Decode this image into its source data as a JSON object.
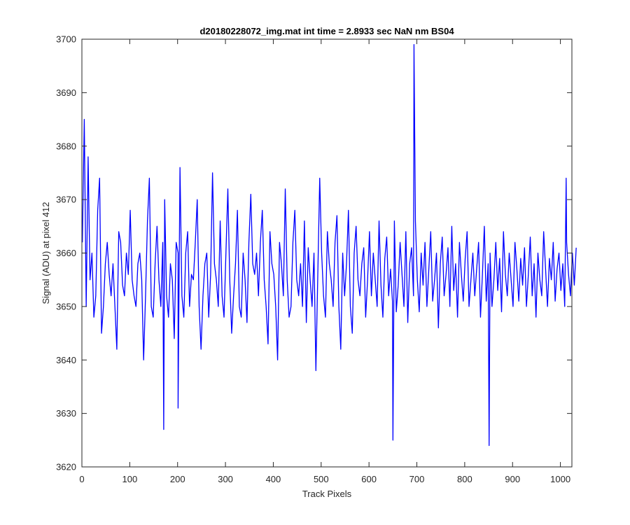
{
  "chart_data": {
    "type": "line",
    "title": "d20180228072_img.mat int time = 2.8933 sec  NaN nm BS04",
    "xlabel": "Track Pixels",
    "ylabel": "Signal (ADU) at pixel 412",
    "xlim": [
      0,
      1024
    ],
    "ylim": [
      3620,
      3700
    ],
    "xticks": [
      0,
      100,
      200,
      300,
      400,
      500,
      600,
      700,
      800,
      900,
      1000
    ],
    "yticks": [
      3620,
      3630,
      3640,
      3650,
      3660,
      3670,
      3680,
      3690,
      3700
    ],
    "grid": false,
    "line_color": "#0000ff",
    "series": [
      {
        "x_start": 1,
        "x_step": 4,
        "values": [
          3662,
          3685,
          3650,
          3678,
          3655,
          3660,
          3648,
          3652,
          3668,
          3674,
          3645,
          3650,
          3658,
          3662,
          3656,
          3652,
          3658,
          3650,
          3642,
          3664,
          3662,
          3654,
          3652,
          3660,
          3656,
          3668,
          3655,
          3652,
          3650,
          3658,
          3660,
          3655,
          3640,
          3652,
          3666,
          3674,
          3650,
          3648,
          3658,
          3665,
          3655,
          3650,
          3662,
          3670,
          3652,
          3648,
          3658,
          3655,
          3644,
          3662,
          3660,
          3676,
          3652,
          3648,
          3660,
          3664,
          3650,
          3656,
          3655,
          3662,
          3670,
          3650,
          3642,
          3652,
          3658,
          3660,
          3648,
          3656,
          3675,
          3658,
          3655,
          3650,
          3666,
          3652,
          3648,
          3660,
          3672,
          3655,
          3645,
          3652,
          3658,
          3668,
          3650,
          3648,
          3660,
          3655,
          3647,
          3662,
          3671,
          3658,
          3656,
          3660,
          3652,
          3662,
          3668,
          3655,
          3650,
          3643,
          3664,
          3658,
          3656,
          3650,
          3640,
          3662,
          3658,
          3652,
          3672,
          3655,
          3648,
          3650,
          3662,
          3668,
          3655,
          3652,
          3658,
          3650,
          3666,
          3647,
          3661,
          3655,
          3650,
          3660,
          3638,
          3656,
          3674,
          3660,
          3652,
          3648,
          3664,
          3658,
          3655,
          3650,
          3662,
          3667,
          3650,
          3642,
          3660,
          3652,
          3658,
          3668,
          3650,
          3645,
          3660,
          3665,
          3655,
          3652,
          3658,
          3661,
          3648,
          3655,
          3664,
          3652,
          3660,
          3655,
          3650,
          3666,
          3654,
          3648,
          3659,
          3663,
          3652,
          3657,
          3651,
          3666,
          3649,
          3654,
          3662,
          3656,
          3650,
          3664,
          3647,
          3658,
          3661,
          3652,
          3666,
          3655,
          3649,
          3660,
          3654,
          3662,
          3650,
          3657,
          3664,
          3651,
          3655,
          3660,
          3646,
          3658,
          3663,
          3652,
          3656,
          3661,
          3650,
          3665,
          3653,
          3658,
          3648,
          3662,
          3656,
          3651,
          3659,
          3664,
          3650,
          3655,
          3660,
          3652,
          3657,
          3662,
          3648,
          3656,
          3665,
          3651,
          3658,
          3660,
          3650,
          3655,
          3662,
          3653,
          3659,
          3649,
          3664,
          3656,
          3652,
          3660,
          3655,
          3650,
          3662,
          3657,
          3651,
          3659,
          3654,
          3661,
          3650,
          3656,
          3663,
          3652,
          3658,
          3648,
          3660,
          3655,
          3652,
          3664,
          3657,
          3650,
          3659,
          3655,
          3662,
          3651,
          3657,
          3660,
          3653,
          3658,
          3650,
          3662,
          3656,
          3652,
          3660,
          3654,
          3661
        ]
      }
    ],
    "spikes": [
      {
        "x": 694,
        "y": 3699
      },
      {
        "x": 650,
        "y": 3625
      },
      {
        "x": 851,
        "y": 3624
      },
      {
        "x": 171,
        "y": 3627
      },
      {
        "x": 201,
        "y": 3631
      },
      {
        "x": 1012,
        "y": 3674
      }
    ]
  }
}
